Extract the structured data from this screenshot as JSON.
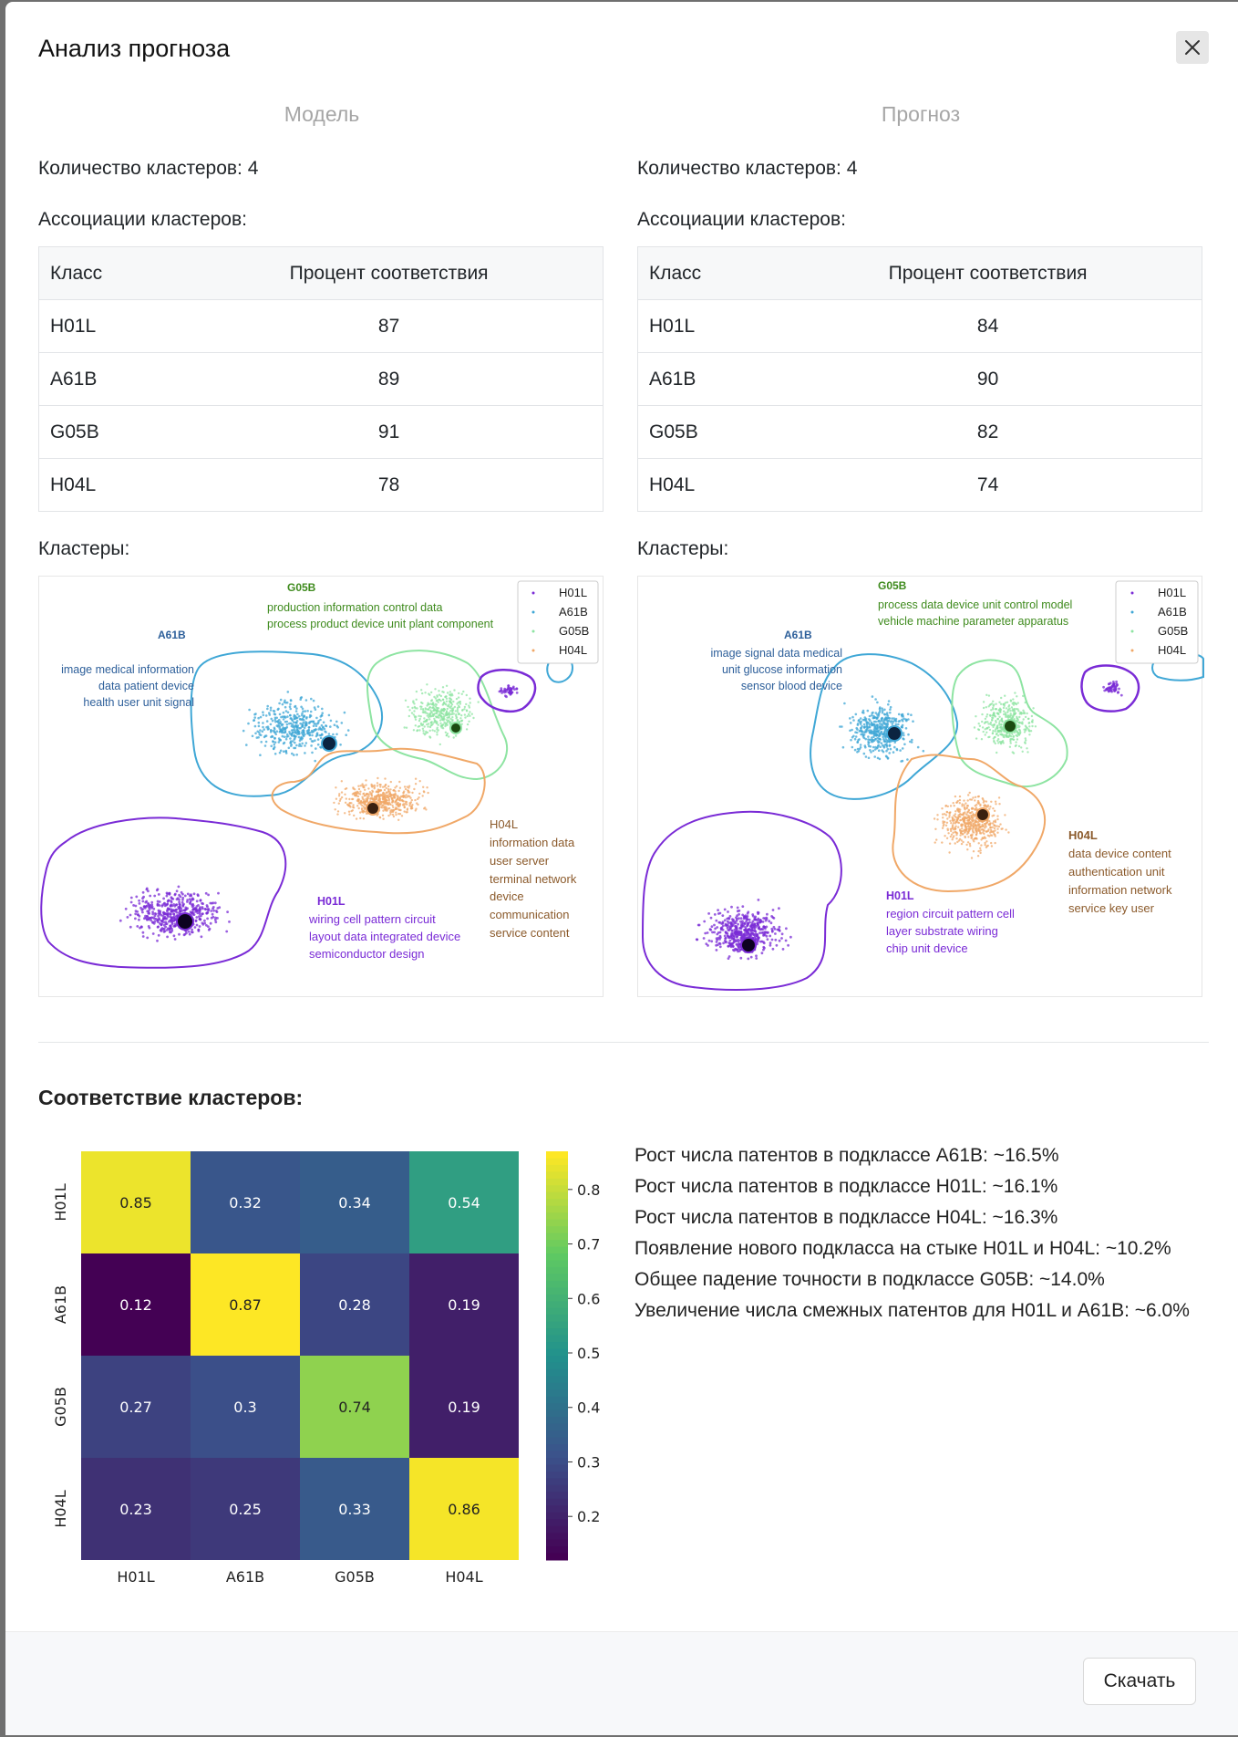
{
  "modal": {
    "title": "Анализ прогноза"
  },
  "columns": [
    {
      "heading": "Модель",
      "cluster_count": "Количество кластеров: 4",
      "assoc_label": "Ассоциации кластеров:",
      "table": {
        "headers": [
          "Класс",
          "Процент соответствия"
        ],
        "rows": [
          [
            "H01L",
            "87"
          ],
          [
            "A61B",
            "89"
          ],
          [
            "G05B",
            "91"
          ],
          [
            "H04L",
            "78"
          ]
        ]
      },
      "clusters_label": "Кластеры:",
      "plot": {
        "legend": [
          "H01L",
          "A61B",
          "G05B",
          "H04L"
        ],
        "labels": {
          "G05B": {
            "title": "G05B",
            "lines": [
              "production information control data",
              "process product device unit plant component"
            ]
          },
          "A61B": {
            "title": "A61B",
            "lines": [
              "image medical information",
              "data patient device",
              "health user unit signal"
            ]
          },
          "H04L": {
            "title": "H04L",
            "lines": [
              "information data",
              "user server",
              "terminal network",
              "device",
              "communication",
              "service content"
            ]
          },
          "H01L": {
            "title": "H01L",
            "lines": [
              "wiring cell pattern circuit",
              "layout data integrated device",
              "semiconductor design"
            ]
          }
        }
      }
    },
    {
      "heading": "Прогноз",
      "cluster_count": "Количество кластеров: 4",
      "assoc_label": "Ассоциации кластеров:",
      "table": {
        "headers": [
          "Класс",
          "Процент соответствия"
        ],
        "rows": [
          [
            "H01L",
            "84"
          ],
          [
            "A61B",
            "90"
          ],
          [
            "G05B",
            "82"
          ],
          [
            "H04L",
            "74"
          ]
        ]
      },
      "clusters_label": "Кластеры:",
      "plot": {
        "legend": [
          "H01L",
          "A61B",
          "G05B",
          "H04L"
        ],
        "labels": {
          "G05B": {
            "title": "G05B",
            "lines": [
              "process data device unit control model",
              "vehicle machine parameter apparatus"
            ]
          },
          "A61B": {
            "title": "A61B",
            "lines": [
              "image signal data medical",
              "unit glucose information",
              "sensor blood device"
            ]
          },
          "H04L": {
            "title": "H04L",
            "lines": [
              "data device content",
              "authentication unit",
              "information network",
              "service key user"
            ]
          },
          "H01L": {
            "title": "H01L",
            "lines": [
              "region circuit pattern cell",
              "layer substrate wiring",
              "chip unit device"
            ]
          }
        }
      }
    }
  ],
  "correspondence": {
    "title": "Соответствие кластеров:",
    "chart_data": {
      "type": "heatmap",
      "rows": [
        "H01L",
        "A61B",
        "G05B",
        "H04L"
      ],
      "columns": [
        "H01L",
        "A61B",
        "G05B",
        "H04L"
      ],
      "values": [
        [
          0.85,
          0.32,
          0.34,
          0.54
        ],
        [
          0.12,
          0.87,
          0.28,
          0.19
        ],
        [
          0.27,
          0.3,
          0.74,
          0.19
        ],
        [
          0.23,
          0.25,
          0.33,
          0.86
        ]
      ],
      "colorbar_ticks": [
        0.8,
        0.7,
        0.6,
        0.5,
        0.4,
        0.3,
        0.2
      ],
      "colorbar_range": [
        0.12,
        0.87
      ],
      "colormap": "viridis"
    },
    "notes": [
      "Рост числа патентов в подклассе A61B: ~16.5%",
      "Рост числа патентов в подклассе H01L: ~16.1%",
      "Рост числа патентов в подклассе H04L: ~16.3%",
      "Появление нового подкласса на стыке H01L и H04L: ~10.2%",
      "Общее падение точности в подклассе G05B: ~14.0%",
      "Увеличение числа смежных патентов для H01L и A61B: ~6.0%"
    ]
  },
  "footer": {
    "download_label": "Скачать"
  },
  "colors": {
    "H01L": "#7a2bd6",
    "A61B": "#3fa7d6",
    "G05B": "#8ee4a2",
    "H04L": "#f0a868",
    "A61B_text": "#2d5f9a",
    "G05B_text": "#3f8b1e",
    "H04L_text": "#8b5a2b"
  }
}
